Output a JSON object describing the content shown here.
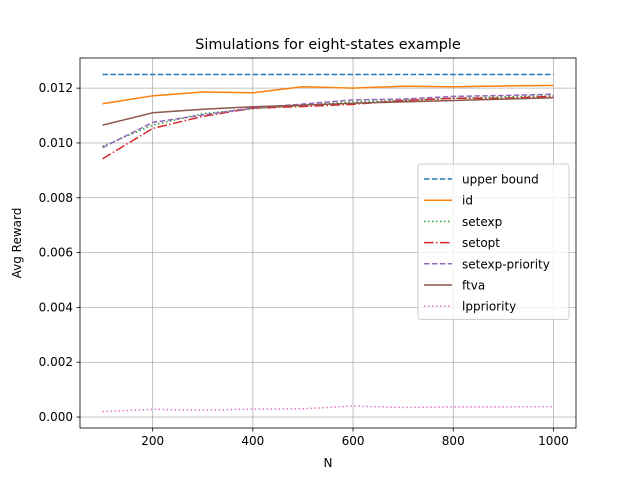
{
  "chart_data": {
    "type": "line",
    "title": "Simulations for eight-states example",
    "xlabel": "N",
    "ylabel": "Avg Reward",
    "xlim": [
      55,
      1045
    ],
    "ylim": [
      -0.0004,
      0.0131
    ],
    "xticks": [
      200,
      400,
      600,
      800,
      1000
    ],
    "xtick_labels": [
      "200",
      "400",
      "600",
      "800",
      "1000"
    ],
    "yticks": [
      0.0,
      0.002,
      0.004,
      0.006,
      0.008,
      0.01,
      0.012
    ],
    "ytick_labels": [
      "0.000",
      "0.002",
      "0.004",
      "0.006",
      "0.008",
      "0.010",
      "0.012"
    ],
    "grid": true,
    "legend_position": "center-right",
    "x": [
      100,
      200,
      300,
      400,
      500,
      600,
      700,
      800,
      900,
      1000
    ],
    "series": [
      {
        "name": "upper bound",
        "color": "#1f77b4",
        "style": "dashed",
        "values": [
          0.0125,
          0.0125,
          0.0125,
          0.0125,
          0.0125,
          0.0125,
          0.0125,
          0.0125,
          0.0125,
          0.0125
        ]
      },
      {
        "name": "id",
        "color": "#ff7f0e",
        "style": "solid",
        "values": [
          0.01143,
          0.01172,
          0.01186,
          0.01183,
          0.01205,
          0.012,
          0.01207,
          0.01205,
          0.01208,
          0.0121
        ]
      },
      {
        "name": "setexp",
        "color": "#2ca02c",
        "style": "dotted",
        "values": [
          0.00988,
          0.01065,
          0.01107,
          0.01125,
          0.01137,
          0.0115,
          0.01155,
          0.01163,
          0.01168,
          0.01172
        ]
      },
      {
        "name": "setopt",
        "color": "#d62728",
        "style": "dashdot",
        "values": [
          0.00942,
          0.01053,
          0.01097,
          0.01127,
          0.01133,
          0.01141,
          0.01155,
          0.01163,
          0.01163,
          0.0117
        ]
      },
      {
        "name": "setexp-priority",
        "color": "#9467bd",
        "style": "dashed",
        "values": [
          0.00983,
          0.01075,
          0.01102,
          0.01128,
          0.01142,
          0.01157,
          0.0116,
          0.0117,
          0.01173,
          0.01178
        ]
      },
      {
        "name": "ftva",
        "color": "#8c564b",
        "style": "solid",
        "values": [
          0.01065,
          0.0111,
          0.01123,
          0.01132,
          0.01138,
          0.01145,
          0.0115,
          0.01155,
          0.0116,
          0.01165
        ]
      },
      {
        "name": "lppriority",
        "color": "#e377c2",
        "style": "dotted",
        "values": [
          0.0002,
          0.00028,
          0.00025,
          0.00029,
          0.0003,
          0.0004,
          0.00035,
          0.00037,
          0.00037,
          0.00038
        ]
      }
    ]
  }
}
